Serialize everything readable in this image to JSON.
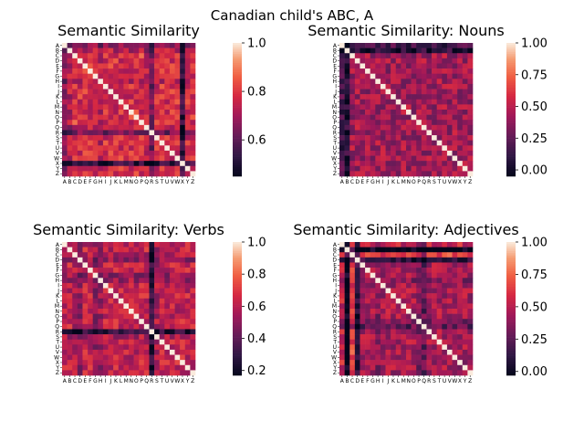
{
  "figure": {
    "suptitle": "Canadian child's ABC, A"
  },
  "chart_data": [
    {
      "type": "heatmap",
      "title": "Semantic Similarity",
      "labels": [
        "A",
        "B",
        "C",
        "D",
        "E",
        "F",
        "G",
        "H",
        "I",
        "J",
        "K",
        "L",
        "M",
        "N",
        "O",
        "P",
        "Q",
        "R",
        "S",
        "T",
        "U",
        "V",
        "W",
        "X",
        "Y",
        "Z"
      ],
      "vrange": [
        0.45,
        1.0
      ],
      "colorbar_ticks": [
        "0.6",
        "0.8",
        "1.0"
      ],
      "colorbar_tick_values": [
        0.6,
        0.8,
        1.0
      ],
      "base": 0.78,
      "spread": 0.08,
      "row_offsets": [
        -0.1,
        -0.05,
        0.02,
        0.0,
        0.01,
        0.0,
        0.0,
        -0.05,
        0.0,
        0.0,
        0.0,
        0.0,
        0.0,
        0.0,
        0.0,
        0.0,
        -0.05,
        -0.15,
        0.0,
        0.0,
        0.0,
        0.0,
        0.0,
        -0.25,
        0.0,
        0.0
      ],
      "seed": 11
    },
    {
      "type": "heatmap",
      "title": "Semantic Similarity: Nouns",
      "labels": [
        "A",
        "B",
        "C",
        "D",
        "E",
        "F",
        "G",
        "H",
        "I",
        "J",
        "K",
        "L",
        "M",
        "N",
        "O",
        "P",
        "Q",
        "R",
        "S",
        "T",
        "U",
        "V",
        "W",
        "X",
        "Y",
        "Z"
      ],
      "vrange": [
        -0.05,
        1.0
      ],
      "colorbar_ticks": [
        "0.00",
        "0.25",
        "0.50",
        "0.75",
        "1.00"
      ],
      "colorbar_tick_values": [
        0.0,
        0.25,
        0.5,
        0.75,
        1.0
      ],
      "base": 0.42,
      "spread": 0.16,
      "row_offsets": [
        -0.25,
        -0.35,
        0.0,
        0.0,
        0.0,
        0.0,
        0.0,
        0.0,
        0.0,
        0.0,
        0.0,
        0.0,
        0.0,
        0.0,
        0.0,
        0.0,
        0.0,
        0.0,
        0.0,
        0.0,
        0.0,
        0.0,
        0.0,
        0.0,
        0.0,
        0.0
      ],
      "seed": 23
    },
    {
      "type": "heatmap",
      "title": "Semantic Similarity: Verbs",
      "labels": [
        "A",
        "B",
        "C",
        "D",
        "E",
        "F",
        "G",
        "H",
        "I",
        "J",
        "K",
        "L",
        "M",
        "N",
        "O",
        "P",
        "Q",
        "R",
        "S",
        "T",
        "U",
        "V",
        "W",
        "X",
        "Y",
        "Z"
      ],
      "vrange": [
        0.17,
        1.0
      ],
      "colorbar_ticks": [
        "0.2",
        "0.4",
        "0.6",
        "0.8",
        "1.0"
      ],
      "colorbar_tick_values": [
        0.2,
        0.4,
        0.6,
        0.8,
        1.0
      ],
      "base": 0.62,
      "spread": 0.12,
      "row_offsets": [
        0.0,
        0.0,
        -0.05,
        -0.1,
        0.0,
        0.0,
        -0.1,
        -0.08,
        0.0,
        0.0,
        0.0,
        0.0,
        0.0,
        0.0,
        0.0,
        0.0,
        0.0,
        -0.35,
        -0.05,
        0.0,
        0.0,
        0.0,
        0.0,
        0.0,
        0.0,
        0.0
      ],
      "seed": 37
    },
    {
      "type": "heatmap",
      "title": "Semantic Similarity: Adjectives",
      "labels": [
        "A",
        "B",
        "C",
        "D",
        "E",
        "F",
        "G",
        "H",
        "I",
        "J",
        "K",
        "L",
        "M",
        "N",
        "O",
        "P",
        "Q",
        "R",
        "S",
        "T",
        "U",
        "V",
        "W",
        "X",
        "Y",
        "Z"
      ],
      "vrange": [
        -0.03,
        1.0
      ],
      "colorbar_ticks": [
        "0.00",
        "0.25",
        "0.50",
        "0.75",
        "1.00"
      ],
      "colorbar_tick_values": [
        0.0,
        0.25,
        0.5,
        0.75,
        1.0
      ],
      "base": 0.45,
      "spread": 0.15,
      "row_offsets": [
        0.1,
        -0.45,
        0.2,
        -0.35,
        0.0,
        0.0,
        0.0,
        -0.1,
        0.0,
        0.0,
        0.0,
        0.0,
        0.0,
        0.0,
        0.0,
        -0.1,
        -0.2,
        0.0,
        0.0,
        0.0,
        0.0,
        0.0,
        0.0,
        0.0,
        0.0,
        0.0
      ],
      "seed": 53
    }
  ]
}
